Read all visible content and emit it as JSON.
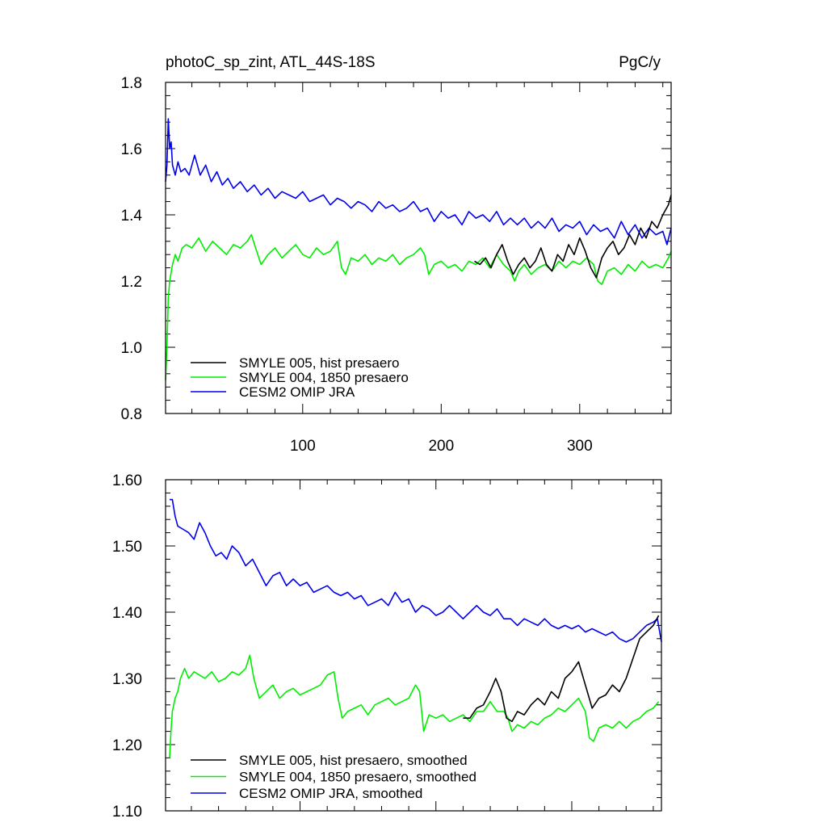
{
  "colors": {
    "smyle005": "#000000",
    "smyle004": "#00ee00",
    "omip": "#0000ee"
  },
  "chart_data": [
    {
      "type": "line",
      "title": "photoC_sp_zint, ATL_44S-18S",
      "units": "PgC/y",
      "xlim": [
        1,
        366
      ],
      "ylim": [
        0.8,
        1.8
      ],
      "yticks": [
        "0.8",
        "1.0",
        "1.2",
        "1.4",
        "1.6",
        "1.8"
      ],
      "xticks": [
        "100",
        "200",
        "300"
      ],
      "legend_position": "lower-left",
      "series": [
        {
          "name": "SMYLE 005, hist presaero",
          "color": "#000000",
          "x": [
            224,
            228,
            232,
            236,
            240,
            244,
            248,
            252,
            256,
            260,
            264,
            268,
            272,
            276,
            280,
            284,
            288,
            292,
            296,
            300,
            304,
            308,
            312,
            316,
            320,
            324,
            328,
            332,
            336,
            340,
            344,
            348,
            352,
            356,
            360,
            364,
            366
          ],
          "y": [
            1.26,
            1.25,
            1.27,
            1.24,
            1.28,
            1.31,
            1.26,
            1.22,
            1.25,
            1.27,
            1.24,
            1.26,
            1.3,
            1.25,
            1.23,
            1.28,
            1.26,
            1.31,
            1.28,
            1.33,
            1.29,
            1.24,
            1.21,
            1.27,
            1.3,
            1.32,
            1.28,
            1.3,
            1.34,
            1.31,
            1.36,
            1.33,
            1.38,
            1.36,
            1.4,
            1.43,
            1.46
          ]
        },
        {
          "name": "SMYLE 004, 1850 presaero",
          "color": "#00ee00",
          "x": [
            1,
            2,
            3,
            4,
            6,
            8,
            10,
            13,
            16,
            20,
            25,
            30,
            35,
            40,
            45,
            50,
            55,
            60,
            63,
            66,
            70,
            75,
            80,
            85,
            90,
            95,
            100,
            105,
            110,
            115,
            120,
            125,
            128,
            131,
            135,
            140,
            145,
            150,
            155,
            160,
            165,
            170,
            175,
            180,
            185,
            188,
            191,
            195,
            200,
            205,
            210,
            215,
            220,
            225,
            230,
            235,
            240,
            245,
            250,
            253,
            256,
            260,
            265,
            270,
            275,
            280,
            285,
            290,
            295,
            300,
            305,
            310,
            313,
            316,
            320,
            325,
            330,
            335,
            340,
            345,
            350,
            355,
            360,
            364,
            366
          ],
          "y": [
            0.9,
            1.0,
            1.15,
            1.2,
            1.25,
            1.28,
            1.26,
            1.3,
            1.31,
            1.3,
            1.33,
            1.29,
            1.32,
            1.3,
            1.28,
            1.31,
            1.3,
            1.32,
            1.34,
            1.3,
            1.25,
            1.28,
            1.3,
            1.27,
            1.29,
            1.31,
            1.28,
            1.27,
            1.3,
            1.28,
            1.29,
            1.32,
            1.24,
            1.22,
            1.27,
            1.26,
            1.28,
            1.25,
            1.27,
            1.26,
            1.28,
            1.25,
            1.27,
            1.28,
            1.3,
            1.28,
            1.22,
            1.25,
            1.26,
            1.24,
            1.25,
            1.23,
            1.26,
            1.25,
            1.27,
            1.24,
            1.28,
            1.25,
            1.23,
            1.2,
            1.23,
            1.25,
            1.22,
            1.24,
            1.25,
            1.23,
            1.26,
            1.24,
            1.26,
            1.25,
            1.27,
            1.25,
            1.2,
            1.19,
            1.23,
            1.24,
            1.22,
            1.25,
            1.23,
            1.26,
            1.24,
            1.25,
            1.24,
            1.27,
            1.29
          ]
        },
        {
          "name": "CESM2 OMIP JRA",
          "color": "#0000ee",
          "x": [
            1,
            2,
            3,
            4,
            5,
            6,
            8,
            10,
            12,
            15,
            18,
            22,
            26,
            30,
            34,
            38,
            42,
            46,
            50,
            55,
            60,
            65,
            70,
            75,
            80,
            85,
            90,
            95,
            100,
            105,
            110,
            115,
            120,
            125,
            130,
            135,
            140,
            145,
            150,
            155,
            160,
            165,
            170,
            175,
            180,
            185,
            190,
            195,
            200,
            205,
            210,
            215,
            220,
            225,
            230,
            235,
            240,
            245,
            250,
            255,
            260,
            265,
            270,
            275,
            280,
            285,
            290,
            295,
            300,
            305,
            310,
            315,
            320,
            325,
            330,
            335,
            340,
            345,
            350,
            355,
            360,
            363,
            366
          ],
          "y": [
            1.5,
            1.55,
            1.69,
            1.6,
            1.62,
            1.55,
            1.52,
            1.56,
            1.53,
            1.54,
            1.52,
            1.58,
            1.52,
            1.55,
            1.5,
            1.53,
            1.49,
            1.51,
            1.48,
            1.5,
            1.47,
            1.49,
            1.46,
            1.48,
            1.45,
            1.47,
            1.46,
            1.45,
            1.47,
            1.44,
            1.45,
            1.46,
            1.43,
            1.45,
            1.44,
            1.42,
            1.44,
            1.43,
            1.41,
            1.44,
            1.42,
            1.43,
            1.41,
            1.42,
            1.44,
            1.41,
            1.42,
            1.38,
            1.41,
            1.39,
            1.4,
            1.37,
            1.41,
            1.39,
            1.4,
            1.38,
            1.41,
            1.37,
            1.39,
            1.37,
            1.39,
            1.36,
            1.38,
            1.36,
            1.39,
            1.35,
            1.37,
            1.36,
            1.38,
            1.34,
            1.37,
            1.35,
            1.36,
            1.33,
            1.38,
            1.34,
            1.37,
            1.33,
            1.36,
            1.34,
            1.35,
            1.31,
            1.36
          ]
        }
      ]
    },
    {
      "type": "line",
      "xlim": [
        1,
        366
      ],
      "ylim": [
        1.1,
        1.6
      ],
      "yticks": [
        "1.10",
        "1.20",
        "1.30",
        "1.40",
        "1.50",
        "1.60"
      ],
      "legend_position": "lower-left",
      "series": [
        {
          "name": "SMYLE 005, hist presaero, smoothed",
          "color": "#000000",
          "x": [
            220,
            225,
            230,
            235,
            240,
            244,
            248,
            252,
            256,
            260,
            265,
            270,
            275,
            280,
            285,
            290,
            295,
            300,
            305,
            310,
            315,
            320,
            325,
            330,
            335,
            340,
            345,
            350,
            355,
            360,
            364
          ],
          "y": [
            1.24,
            1.24,
            1.255,
            1.26,
            1.28,
            1.3,
            1.28,
            1.24,
            1.235,
            1.25,
            1.245,
            1.26,
            1.27,
            1.26,
            1.28,
            1.27,
            1.3,
            1.31,
            1.325,
            1.29,
            1.255,
            1.27,
            1.275,
            1.29,
            1.28,
            1.3,
            1.33,
            1.36,
            1.37,
            1.38,
            1.395
          ]
        },
        {
          "name": "SMYLE 004, 1850 presaero, smoothed",
          "color": "#00ee00",
          "x": [
            4,
            5,
            6,
            8,
            10,
            12,
            15,
            18,
            22,
            26,
            30,
            35,
            40,
            45,
            50,
            55,
            60,
            63,
            66,
            70,
            75,
            80,
            85,
            90,
            95,
            100,
            105,
            110,
            115,
            120,
            125,
            128,
            131,
            135,
            140,
            145,
            150,
            155,
            160,
            165,
            170,
            175,
            180,
            185,
            188,
            191,
            195,
            200,
            205,
            210,
            215,
            220,
            225,
            230,
            235,
            240,
            245,
            250,
            253,
            256,
            260,
            265,
            270,
            275,
            280,
            285,
            290,
            295,
            300,
            305,
            310,
            313,
            316,
            320,
            325,
            330,
            335,
            340,
            345,
            350,
            355,
            360,
            364
          ],
          "y": [
            1.18,
            1.22,
            1.25,
            1.27,
            1.28,
            1.3,
            1.315,
            1.3,
            1.31,
            1.305,
            1.3,
            1.31,
            1.295,
            1.3,
            1.31,
            1.305,
            1.315,
            1.335,
            1.3,
            1.27,
            1.28,
            1.29,
            1.27,
            1.28,
            1.285,
            1.275,
            1.28,
            1.285,
            1.29,
            1.305,
            1.31,
            1.27,
            1.24,
            1.25,
            1.255,
            1.26,
            1.245,
            1.26,
            1.265,
            1.27,
            1.26,
            1.265,
            1.27,
            1.29,
            1.28,
            1.22,
            1.245,
            1.24,
            1.245,
            1.235,
            1.24,
            1.245,
            1.235,
            1.25,
            1.25,
            1.265,
            1.25,
            1.25,
            1.24,
            1.22,
            1.23,
            1.225,
            1.235,
            1.23,
            1.24,
            1.245,
            1.255,
            1.25,
            1.26,
            1.27,
            1.25,
            1.21,
            1.205,
            1.225,
            1.23,
            1.225,
            1.235,
            1.225,
            1.235,
            1.24,
            1.25,
            1.255,
            1.265
          ]
        },
        {
          "name": "CESM2 OMIP JRA, smoothed",
          "color": "#0000ee",
          "x": [
            4,
            6,
            8,
            10,
            14,
            18,
            22,
            26,
            30,
            34,
            38,
            42,
            46,
            50,
            55,
            60,
            65,
            70,
            75,
            80,
            85,
            90,
            95,
            100,
            105,
            110,
            115,
            120,
            125,
            130,
            135,
            140,
            145,
            150,
            155,
            160,
            165,
            170,
            175,
            180,
            185,
            190,
            195,
            200,
            205,
            210,
            215,
            220,
            225,
            230,
            235,
            240,
            245,
            250,
            255,
            260,
            265,
            270,
            275,
            280,
            285,
            290,
            295,
            300,
            305,
            310,
            315,
            320,
            325,
            330,
            335,
            340,
            345,
            350,
            355,
            360,
            363,
            366
          ],
          "y": [
            1.57,
            1.57,
            1.545,
            1.53,
            1.525,
            1.52,
            1.51,
            1.535,
            1.52,
            1.5,
            1.485,
            1.49,
            1.48,
            1.5,
            1.49,
            1.47,
            1.48,
            1.46,
            1.44,
            1.455,
            1.46,
            1.44,
            1.45,
            1.44,
            1.445,
            1.43,
            1.435,
            1.44,
            1.43,
            1.425,
            1.43,
            1.42,
            1.425,
            1.41,
            1.415,
            1.42,
            1.41,
            1.43,
            1.415,
            1.42,
            1.4,
            1.41,
            1.405,
            1.395,
            1.4,
            1.41,
            1.4,
            1.39,
            1.4,
            1.41,
            1.4,
            1.395,
            1.405,
            1.39,
            1.39,
            1.38,
            1.39,
            1.385,
            1.38,
            1.39,
            1.38,
            1.375,
            1.38,
            1.375,
            1.38,
            1.37,
            1.375,
            1.37,
            1.365,
            1.37,
            1.36,
            1.355,
            1.36,
            1.37,
            1.38,
            1.385,
            1.39,
            1.355
          ]
        }
      ]
    }
  ]
}
